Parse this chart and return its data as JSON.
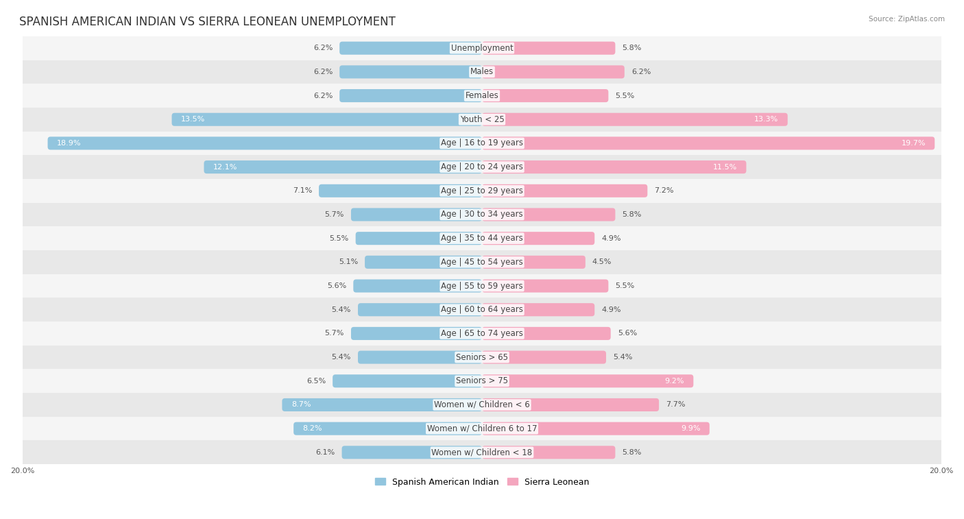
{
  "title": "SPANISH AMERICAN INDIAN VS SIERRA LEONEAN UNEMPLOYMENT",
  "source": "Source: ZipAtlas.com",
  "categories": [
    "Unemployment",
    "Males",
    "Females",
    "Youth < 25",
    "Age | 16 to 19 years",
    "Age | 20 to 24 years",
    "Age | 25 to 29 years",
    "Age | 30 to 34 years",
    "Age | 35 to 44 years",
    "Age | 45 to 54 years",
    "Age | 55 to 59 years",
    "Age | 60 to 64 years",
    "Age | 65 to 74 years",
    "Seniors > 65",
    "Seniors > 75",
    "Women w/ Children < 6",
    "Women w/ Children 6 to 17",
    "Women w/ Children < 18"
  ],
  "left_values": [
    6.2,
    6.2,
    6.2,
    13.5,
    18.9,
    12.1,
    7.1,
    5.7,
    5.5,
    5.1,
    5.6,
    5.4,
    5.7,
    5.4,
    6.5,
    8.7,
    8.2,
    6.1
  ],
  "right_values": [
    5.8,
    6.2,
    5.5,
    13.3,
    19.7,
    11.5,
    7.2,
    5.8,
    4.9,
    4.5,
    5.5,
    4.9,
    5.6,
    5.4,
    9.2,
    7.7,
    9.9,
    5.8
  ],
  "left_color": "#92c5de",
  "right_color": "#f4a6be",
  "left_label": "Spanish American Indian",
  "right_label": "Sierra Leonean",
  "max_val": 20.0,
  "fig_bg": "#ffffff",
  "row_bg_light": "#f5f5f5",
  "row_bg_dark": "#e8e8e8",
  "title_fontsize": 12,
  "label_fontsize": 8.5,
  "value_fontsize": 8.0,
  "source_fontsize": 7.5
}
